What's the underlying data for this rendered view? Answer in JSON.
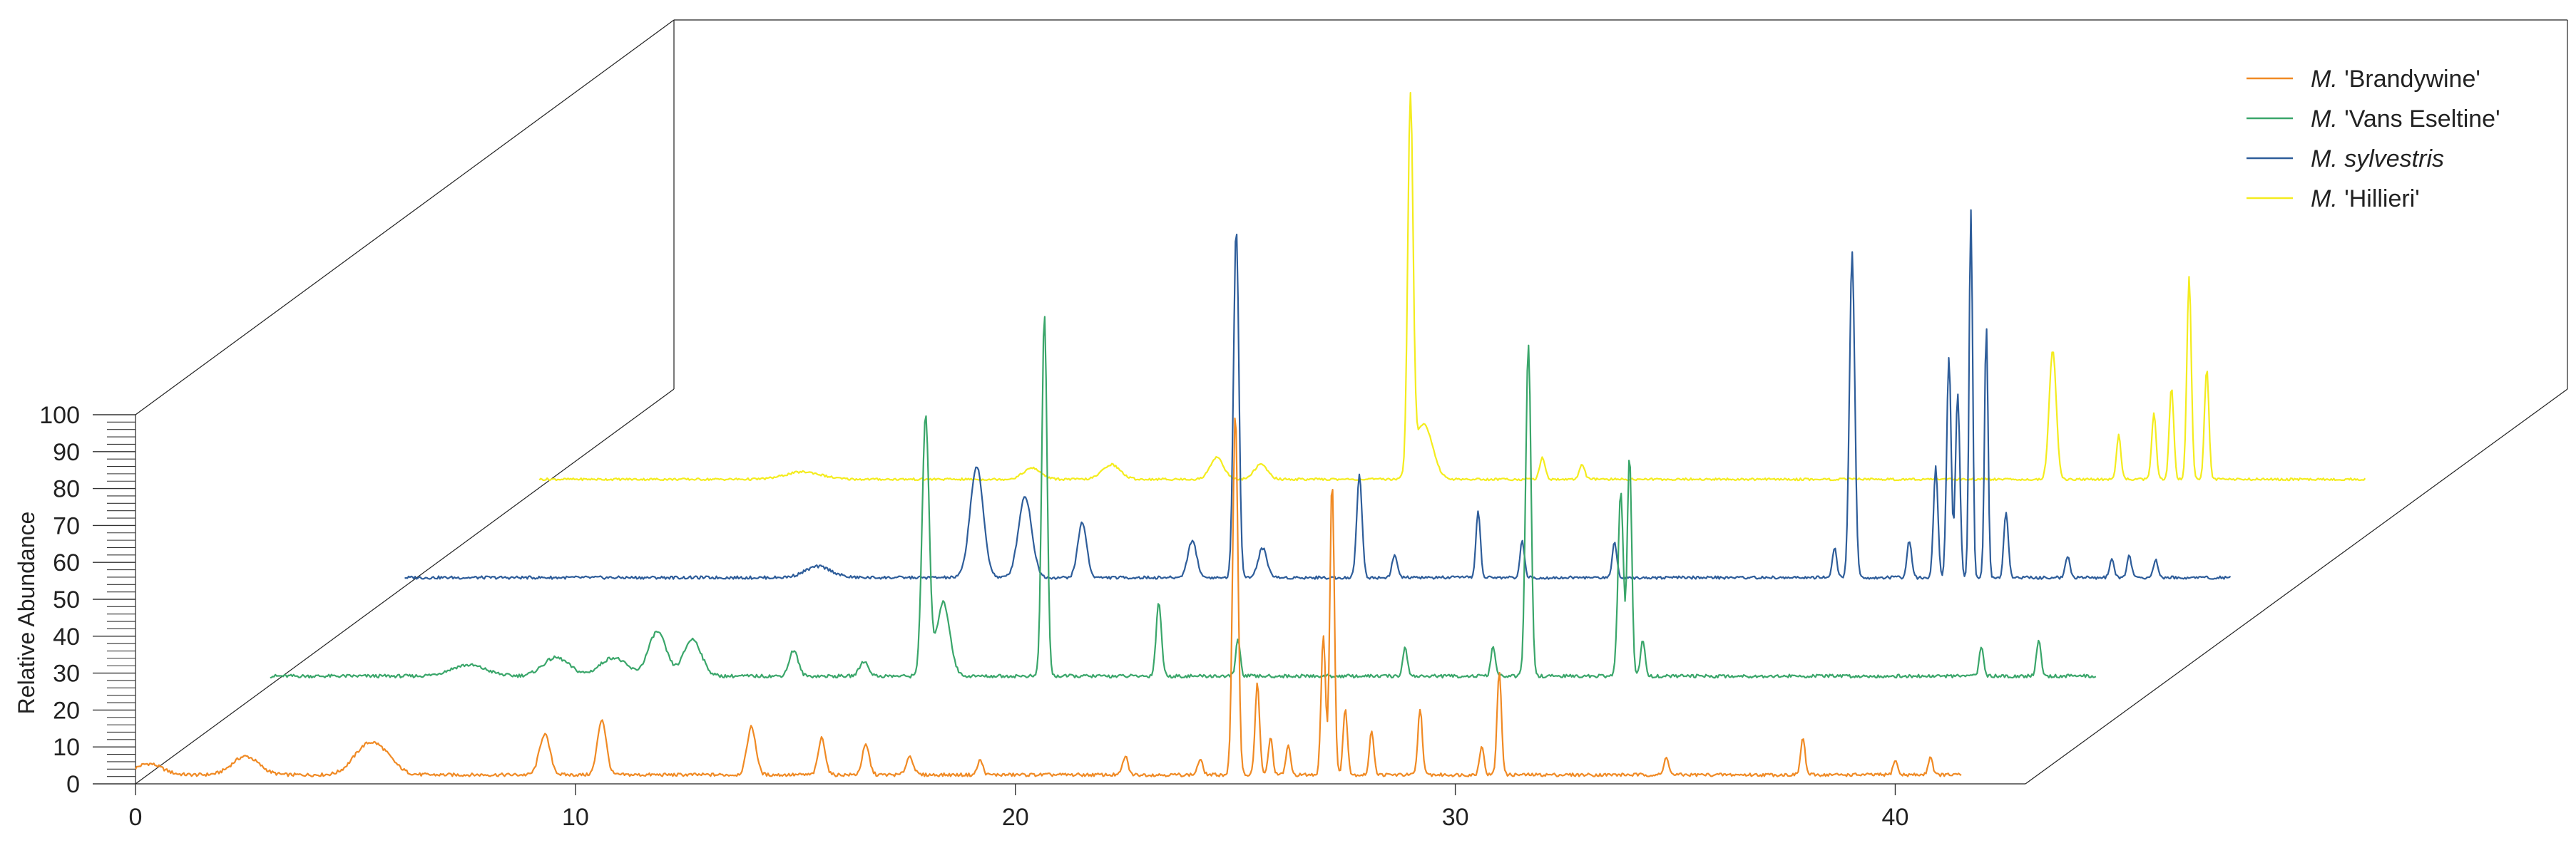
{
  "chart_data": {
    "type": "line",
    "style": "3d-waterfall chromatogram",
    "ylabel": "Relative Abundance",
    "xlabel": "",
    "xlim": [
      0,
      41.5
    ],
    "ylim": [
      0,
      100
    ],
    "x_ticks": [
      "0",
      "10",
      "20",
      "30",
      "40"
    ],
    "y_ticks": [
      "0",
      "10",
      "20",
      "30",
      "40",
      "50",
      "60",
      "70",
      "80",
      "90",
      "100"
    ],
    "grid": false,
    "legend_position": "top-right",
    "series": [
      {
        "name": "'Brandywine'",
        "name_prefix": "M.",
        "color": "#f08a24",
        "baseline": 2,
        "noise": 0.9,
        "peaks": [
          [
            0.3,
            3,
            0.3
          ],
          [
            2.5,
            5,
            0.3
          ],
          [
            5.2,
            6,
            0.3
          ],
          [
            5.6,
            5,
            0.3
          ],
          [
            9.3,
            11,
            0.12
          ],
          [
            10.6,
            15,
            0.1
          ],
          [
            14.0,
            13,
            0.1
          ],
          [
            15.6,
            10,
            0.08
          ],
          [
            16.6,
            8,
            0.08
          ],
          [
            17.6,
            5,
            0.08
          ],
          [
            19.2,
            4,
            0.06
          ],
          [
            22.5,
            5,
            0.06
          ],
          [
            24.2,
            4,
            0.06
          ],
          [
            25.0,
            98,
            0.06
          ],
          [
            25.5,
            25,
            0.05
          ],
          [
            25.8,
            10,
            0.05
          ],
          [
            26.2,
            8,
            0.05
          ],
          [
            27.0,
            38,
            0.05
          ],
          [
            27.2,
            80,
            0.05
          ],
          [
            27.5,
            18,
            0.05
          ],
          [
            28.1,
            12,
            0.05
          ],
          [
            29.2,
            18,
            0.05
          ],
          [
            30.6,
            8,
            0.05
          ],
          [
            31.0,
            28,
            0.05
          ],
          [
            34.8,
            5,
            0.05
          ],
          [
            37.9,
            10,
            0.05
          ],
          [
            40.0,
            4,
            0.05
          ],
          [
            40.8,
            5,
            0.05
          ]
        ]
      },
      {
        "name": "'Vans Eseltine'",
        "name_prefix": "M.",
        "color": "#3aa66a",
        "baseline": 2,
        "noise": 0.9,
        "peaks": [
          [
            4.5,
            3,
            0.4
          ],
          [
            6.5,
            5,
            0.3
          ],
          [
            7.8,
            5,
            0.3
          ],
          [
            8.8,
            12,
            0.2
          ],
          [
            9.6,
            10,
            0.2
          ],
          [
            11.9,
            7,
            0.1
          ],
          [
            13.5,
            4,
            0.1
          ],
          [
            14.9,
            70,
            0.08
          ],
          [
            15.3,
            20,
            0.15
          ],
          [
            17.6,
            98,
            0.06
          ],
          [
            20.2,
            20,
            0.06
          ],
          [
            22.0,
            10,
            0.05
          ],
          [
            25.8,
            8,
            0.05
          ],
          [
            27.8,
            8,
            0.05
          ],
          [
            28.6,
            90,
            0.06
          ],
          [
            30.7,
            50,
            0.06
          ],
          [
            30.9,
            60,
            0.05
          ],
          [
            31.2,
            10,
            0.05
          ],
          [
            38.9,
            8,
            0.05
          ],
          [
            40.2,
            10,
            0.05
          ]
        ]
      },
      {
        "name": "sylvestris",
        "name_prefix": "M.",
        "color": "#2e5d9a",
        "baseline": 2,
        "noise": 0.8,
        "peaks": [
          [
            9.4,
            3,
            0.3
          ],
          [
            13.0,
            30,
            0.15
          ],
          [
            14.1,
            22,
            0.15
          ],
          [
            15.4,
            15,
            0.1
          ],
          [
            17.9,
            10,
            0.1
          ],
          [
            18.9,
            95,
            0.06
          ],
          [
            19.5,
            8,
            0.1
          ],
          [
            21.7,
            28,
            0.06
          ],
          [
            22.5,
            6,
            0.06
          ],
          [
            24.4,
            18,
            0.05
          ],
          [
            25.4,
            10,
            0.05
          ],
          [
            27.5,
            10,
            0.05
          ],
          [
            32.5,
            8,
            0.05
          ],
          [
            32.9,
            88,
            0.06
          ],
          [
            34.2,
            10,
            0.05
          ],
          [
            34.8,
            30,
            0.05
          ],
          [
            35.1,
            60,
            0.05
          ],
          [
            35.3,
            50,
            0.05
          ],
          [
            35.6,
            100,
            0.04
          ],
          [
            35.95,
            68,
            0.04
          ],
          [
            36.4,
            18,
            0.05
          ],
          [
            37.8,
            6,
            0.05
          ],
          [
            38.8,
            5,
            0.05
          ],
          [
            39.2,
            6,
            0.05
          ],
          [
            39.8,
            5,
            0.05
          ],
          [
            42.7,
            16,
            0.05
          ]
        ]
      },
      {
        "name": "'Hillieri'",
        "name_prefix": "M.",
        "color": "#f4ec1e",
        "baseline": 2,
        "noise": 0.6,
        "peaks": [
          [
            6.0,
            2,
            0.4
          ],
          [
            11.2,
            3,
            0.2
          ],
          [
            13.0,
            4,
            0.2
          ],
          [
            15.4,
            6,
            0.15
          ],
          [
            16.4,
            4,
            0.15
          ],
          [
            19.8,
            100,
            0.06
          ],
          [
            20.1,
            15,
            0.2
          ],
          [
            22.8,
            6,
            0.06
          ],
          [
            23.7,
            4,
            0.06
          ],
          [
            34.4,
            35,
            0.08
          ],
          [
            35.9,
            12,
            0.05
          ],
          [
            36.7,
            18,
            0.05
          ],
          [
            37.1,
            25,
            0.05
          ],
          [
            37.5,
            55,
            0.05
          ],
          [
            37.9,
            30,
            0.05
          ],
          [
            41.8,
            6,
            0.05
          ],
          [
            41.9,
            5,
            0.05
          ],
          [
            45.0,
            20,
            0.05
          ]
        ]
      }
    ]
  }
}
